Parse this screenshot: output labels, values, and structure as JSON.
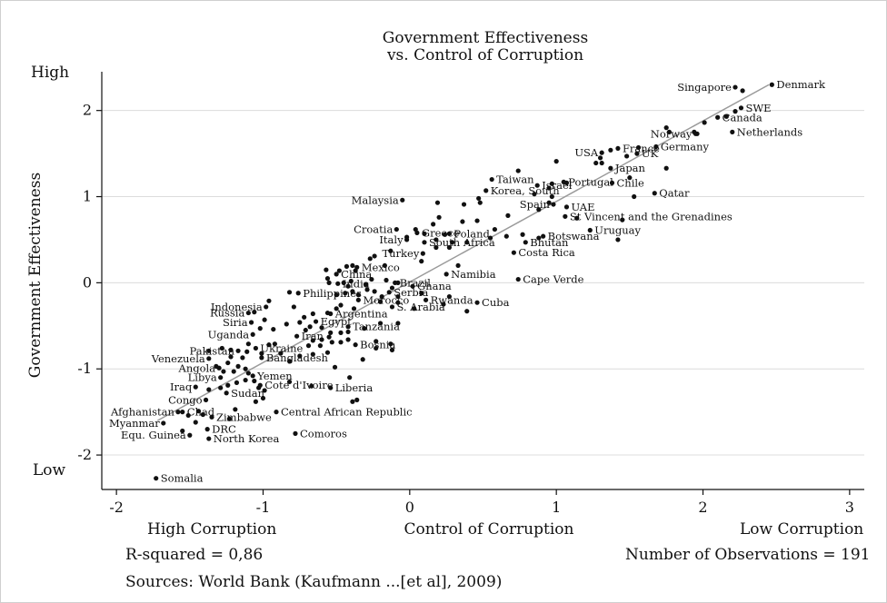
{
  "chart_data": {
    "type": "scatter",
    "title": "Government Effectiveness",
    "subtitle": "vs. Control of Corruption",
    "xlabel": "Control of Corruption",
    "ylabel": "Government Effectiveness",
    "xlim": [
      -2.1,
      3.1
    ],
    "ylim": [
      -2.4,
      2.45
    ],
    "xticks": [
      -2,
      -1,
      0,
      1,
      2,
      3
    ],
    "yticks": [
      2,
      1,
      0,
      -1,
      -2
    ],
    "y_high_label": "High",
    "y_low_label": "Low",
    "x_left_label": "High Corruption",
    "x_right_label": "Low Corruption",
    "grid": "horizontal",
    "fit_line": {
      "x": [
        -1.72,
        2.45
      ],
      "y": [
        -1.6,
        2.3
      ]
    },
    "labeled_points": [
      {
        "label": "Denmark",
        "x": 2.47,
        "y": 2.3
      },
      {
        "label": "Singapore",
        "x": 2.22,
        "y": 2.27
      },
      {
        "label": "SWE",
        "x": 2.26,
        "y": 2.03
      },
      {
        "label": "Canada",
        "x": 2.1,
        "y": 1.92
      },
      {
        "label": "Netherlands",
        "x": 2.2,
        "y": 1.75
      },
      {
        "label": "Norway",
        "x": 1.95,
        "y": 1.73
      },
      {
        "label": "France",
        "x": 1.42,
        "y": 1.56
      },
      {
        "label": "Germany",
        "x": 1.68,
        "y": 1.58
      },
      {
        "label": "USA",
        "x": 1.31,
        "y": 1.51
      },
      {
        "label": "UK",
        "x": 1.55,
        "y": 1.5
      },
      {
        "label": "Japan",
        "x": 1.37,
        "y": 1.33
      },
      {
        "label": "Taiwan",
        "x": 0.56,
        "y": 1.2
      },
      {
        "label": "Israel",
        "x": 0.87,
        "y": 1.13
      },
      {
        "label": "Portugal",
        "x": 1.05,
        "y": 1.17
      },
      {
        "label": "Chile",
        "x": 1.38,
        "y": 1.16
      },
      {
        "label": "Korea, South",
        "x": 0.52,
        "y": 1.07
      },
      {
        "label": "Qatar",
        "x": 1.67,
        "y": 1.04
      },
      {
        "label": "Malaysia",
        "x": -0.05,
        "y": 0.96
      },
      {
        "label": "Spain",
        "x": 0.98,
        "y": 0.91
      },
      {
        "label": "UAE",
        "x": 1.07,
        "y": 0.88
      },
      {
        "label": "St Vincent and the Grenadines",
        "x": 1.06,
        "y": 0.77
      },
      {
        "label": "Croatia",
        "x": -0.09,
        "y": 0.62
      },
      {
        "label": "Greece",
        "x": 0.05,
        "y": 0.58
      },
      {
        "label": "Poland",
        "x": 0.27,
        "y": 0.57
      },
      {
        "label": "Uruguay",
        "x": 1.23,
        "y": 0.61
      },
      {
        "label": "Italy",
        "x": -0.02,
        "y": 0.5
      },
      {
        "label": "South Africa",
        "x": 0.1,
        "y": 0.47
      },
      {
        "label": "Botswana",
        "x": 0.91,
        "y": 0.54
      },
      {
        "label": "Bhutan",
        "x": 0.79,
        "y": 0.47
      },
      {
        "label": "Turkey",
        "x": 0.09,
        "y": 0.34
      },
      {
        "label": "Costa Rica",
        "x": 0.71,
        "y": 0.35
      },
      {
        "label": "Mexico",
        "x": -0.36,
        "y": 0.18
      },
      {
        "label": "China",
        "x": -0.5,
        "y": 0.1
      },
      {
        "label": "Namibia",
        "x": 0.25,
        "y": 0.1
      },
      {
        "label": "India",
        "x": -0.49,
        "y": -0.01
      },
      {
        "label": "Brazil",
        "x": -0.1,
        "y": 0.0
      },
      {
        "label": "Cape Verde",
        "x": 0.74,
        "y": 0.04
      },
      {
        "label": "Ghana",
        "x": 0.02,
        "y": -0.04
      },
      {
        "label": "Philippines",
        "x": -0.76,
        "y": -0.12
      },
      {
        "label": "Serbia",
        "x": -0.14,
        "y": -0.11
      },
      {
        "label": "Rwanda",
        "x": 0.11,
        "y": -0.2
      },
      {
        "label": "Indonesia",
        "x": -0.98,
        "y": -0.28
      },
      {
        "label": "Morocco",
        "x": -0.35,
        "y": -0.2
      },
      {
        "label": "Cuba",
        "x": 0.46,
        "y": -0.23
      },
      {
        "label": "S. Arabia",
        "x": -0.12,
        "y": -0.28
      },
      {
        "label": "Russia",
        "x": -1.1,
        "y": -0.35
      },
      {
        "label": "Argentina",
        "x": -0.54,
        "y": -0.36
      },
      {
        "label": "Siria",
        "x": -1.08,
        "y": -0.46
      },
      {
        "label": "Egypt",
        "x": -0.64,
        "y": -0.45
      },
      {
        "label": "Tanzania",
        "x": -0.42,
        "y": -0.51
      },
      {
        "label": "Uganda",
        "x": -1.07,
        "y": -0.6
      },
      {
        "label": "Iran",
        "x": -0.77,
        "y": -0.62
      },
      {
        "label": "Bosnia",
        "x": -0.37,
        "y": -0.72
      },
      {
        "label": "Ukraine",
        "x": -1.05,
        "y": -0.76
      },
      {
        "label": "Pakistan",
        "x": -1.17,
        "y": -0.79
      },
      {
        "label": "Venezuela",
        "x": -1.37,
        "y": -0.88
      },
      {
        "label": "Bangladesh",
        "x": -1.01,
        "y": -0.87
      },
      {
        "label": "Angola",
        "x": -1.3,
        "y": -0.99
      },
      {
        "label": "Libya",
        "x": -1.29,
        "y": -1.1
      },
      {
        "label": "Yemen",
        "x": -1.07,
        "y": -1.08
      },
      {
        "label": "Cote d'Ivoire",
        "x": -1.02,
        "y": -1.19
      },
      {
        "label": "Liberia",
        "x": -0.54,
        "y": -1.22
      },
      {
        "label": "Iraq",
        "x": -1.46,
        "y": -1.21
      },
      {
        "label": "Sudan",
        "x": -1.25,
        "y": -1.28
      },
      {
        "label": "Congo",
        "x": -1.39,
        "y": -1.36
      },
      {
        "label": "Central African Republic",
        "x": -0.91,
        "y": -1.5
      },
      {
        "label": "Afghanistan",
        "x": -1.58,
        "y": -1.5
      },
      {
        "label": "Chad",
        "x": -1.55,
        "y": -1.5
      },
      {
        "label": "Zimbabwe",
        "x": -1.35,
        "y": -1.56
      },
      {
        "label": "Myanmar",
        "x": -1.68,
        "y": -1.63
      },
      {
        "label": "DRC",
        "x": -1.38,
        "y": -1.7
      },
      {
        "label": "Comoros",
        "x": -0.78,
        "y": -1.75
      },
      {
        "label": "Equ. Guinea",
        "x": -1.5,
        "y": -1.77
      },
      {
        "label": "North Korea",
        "x": -1.37,
        "y": -1.81
      },
      {
        "label": "Somalia",
        "x": -1.73,
        "y": -2.27
      }
    ],
    "unlabeled_points": [
      [
        2.27,
        2.23
      ],
      [
        2.22,
        1.99
      ],
      [
        2.16,
        1.93
      ],
      [
        2.01,
        1.86
      ],
      [
        1.96,
        1.73
      ],
      [
        1.94,
        1.75
      ],
      [
        1.77,
        1.75
      ],
      [
        1.75,
        1.8
      ],
      [
        1.56,
        1.57
      ],
      [
        1.37,
        1.54
      ],
      [
        1.3,
        1.45
      ],
      [
        1.48,
        1.47
      ],
      [
        1.31,
        1.39
      ],
      [
        1.27,
        1.39
      ],
      [
        1.75,
        1.33
      ],
      [
        1.5,
        1.22
      ],
      [
        1.53,
        1.0
      ],
      [
        1.07,
        1.16
      ],
      [
        1.0,
        1.41
      ],
      [
        0.74,
        1.3
      ],
      [
        0.97,
        1.15
      ],
      [
        0.95,
        1.1
      ],
      [
        0.85,
        1.03
      ],
      [
        0.97,
        1.0
      ],
      [
        0.95,
        0.93
      ],
      [
        0.88,
        0.85
      ],
      [
        1.14,
        0.75
      ],
      [
        1.45,
        0.73
      ],
      [
        1.42,
        0.5
      ],
      [
        0.48,
        0.93
      ],
      [
        0.47,
        0.98
      ],
      [
        0.37,
        0.91
      ],
      [
        0.19,
        0.93
      ],
      [
        0.67,
        0.78
      ],
      [
        0.46,
        0.72
      ],
      [
        0.2,
        0.76
      ],
      [
        0.36,
        0.71
      ],
      [
        0.16,
        0.68
      ],
      [
        0.04,
        0.62
      ],
      [
        0.1,
        0.57
      ],
      [
        0.24,
        0.56
      ],
      [
        0.58,
        0.62
      ],
      [
        0.18,
        0.5
      ],
      [
        0.29,
        0.47
      ],
      [
        0.18,
        0.41
      ],
      [
        -0.02,
        0.53
      ],
      [
        -0.13,
        0.37
      ],
      [
        -0.24,
        0.31
      ],
      [
        -0.27,
        0.28
      ],
      [
        0.27,
        0.41
      ],
      [
        0.39,
        0.47
      ],
      [
        0.55,
        0.52
      ],
      [
        0.77,
        0.56
      ],
      [
        0.88,
        0.52
      ],
      [
        0.66,
        0.54
      ],
      [
        0.33,
        0.2
      ],
      [
        0.08,
        0.25
      ],
      [
        -0.17,
        0.2
      ],
      [
        -0.37,
        0.14
      ],
      [
        -0.39,
        0.2
      ],
      [
        -0.43,
        0.19
      ],
      [
        -0.48,
        0.14
      ],
      [
        -0.57,
        0.15
      ],
      [
        -0.56,
        0.05
      ],
      [
        -0.55,
        0.0
      ],
      [
        -0.45,
        0.0
      ],
      [
        -0.4,
        0.02
      ],
      [
        -0.26,
        0.04
      ],
      [
        -0.16,
        0.03
      ],
      [
        -0.08,
        0.0
      ],
      [
        -0.12,
        -0.06
      ],
      [
        -0.29,
        -0.08
      ],
      [
        -0.39,
        -0.1
      ],
      [
        -0.35,
        -0.14
      ],
      [
        -0.2,
        -0.22
      ],
      [
        -0.19,
        -0.16
      ],
      [
        -0.24,
        -0.1
      ],
      [
        -0.08,
        -0.16
      ],
      [
        -0.44,
        -0.12
      ],
      [
        -0.5,
        -0.14
      ],
      [
        -0.3,
        -0.02
      ],
      [
        -0.42,
        -0.04
      ],
      [
        0.08,
        -0.12
      ],
      [
        0.23,
        -0.25
      ],
      [
        0.27,
        -0.16
      ],
      [
        -0.08,
        -0.23
      ],
      [
        0.03,
        -0.3
      ],
      [
        0.39,
        -0.33
      ],
      [
        -0.38,
        -0.3
      ],
      [
        -0.47,
        -0.26
      ],
      [
        -0.5,
        -0.3
      ],
      [
        -0.56,
        -0.35
      ],
      [
        -0.66,
        -0.36
      ],
      [
        -0.72,
        -0.4
      ],
      [
        -0.79,
        -0.28
      ],
      [
        -0.82,
        -0.11
      ],
      [
        -0.96,
        -0.21
      ],
      [
        -1.06,
        -0.34
      ],
      [
        -0.99,
        -0.43
      ],
      [
        -1.02,
        -0.53
      ],
      [
        -0.93,
        -0.54
      ],
      [
        -0.84,
        -0.48
      ],
      [
        -0.71,
        -0.55
      ],
      [
        -0.75,
        -0.46
      ],
      [
        -0.68,
        -0.51
      ],
      [
        -0.6,
        -0.52
      ],
      [
        -0.54,
        -0.58
      ],
      [
        -0.47,
        -0.58
      ],
      [
        -0.42,
        -0.57
      ],
      [
        -0.31,
        -0.53
      ],
      [
        -0.2,
        -0.47
      ],
      [
        -0.08,
        -0.47
      ],
      [
        -0.6,
        -0.66
      ],
      [
        -0.66,
        -0.67
      ],
      [
        -0.55,
        -0.63
      ],
      [
        -0.53,
        -0.69
      ],
      [
        -0.69,
        -0.73
      ],
      [
        -0.61,
        -0.73
      ],
      [
        -0.47,
        -0.69
      ],
      [
        -0.42,
        -0.66
      ],
      [
        -0.32,
        -0.89
      ],
      [
        -0.23,
        -0.76
      ],
      [
        -0.13,
        -0.71
      ],
      [
        -0.12,
        -0.78
      ],
      [
        -0.23,
        -0.68
      ],
      [
        -0.56,
        -0.81
      ],
      [
        -0.66,
        -0.83
      ],
      [
        -0.75,
        -0.85
      ],
      [
        -0.82,
        -0.91
      ],
      [
        -0.88,
        -0.82
      ],
      [
        -0.92,
        -0.71
      ],
      [
        -0.96,
        -0.72
      ],
      [
        -1.01,
        -0.82
      ],
      [
        -1.1,
        -0.71
      ],
      [
        -1.11,
        -0.8
      ],
      [
        -1.22,
        -0.78
      ],
      [
        -1.28,
        -0.76
      ],
      [
        -1.37,
        -0.79
      ],
      [
        -1.22,
        -0.86
      ],
      [
        -1.14,
        -0.87
      ],
      [
        -1.24,
        -0.93
      ],
      [
        -1.17,
        -0.97
      ],
      [
        -1.32,
        -0.97
      ],
      [
        -1.27,
        -1.03
      ],
      [
        -1.2,
        -1.03
      ],
      [
        -1.12,
        -1.0
      ],
      [
        -1.1,
        -1.05
      ],
      [
        -1.12,
        -1.13
      ],
      [
        -1.18,
        -1.16
      ],
      [
        -1.24,
        -1.19
      ],
      [
        -1.29,
        -1.22
      ],
      [
        -1.37,
        -1.24
      ],
      [
        -1.06,
        -1.14
      ],
      [
        -1.03,
        -1.22
      ],
      [
        -0.99,
        -1.25
      ],
      [
        -1.0,
        -1.34
      ],
      [
        -1.05,
        -1.38
      ],
      [
        -0.82,
        -1.15
      ],
      [
        -0.67,
        -1.2
      ],
      [
        -0.41,
        -1.1
      ],
      [
        -0.39,
        -1.38
      ],
      [
        -0.36,
        -1.36
      ],
      [
        -0.51,
        -0.98
      ],
      [
        -1.44,
        -1.49
      ],
      [
        -1.51,
        -1.54
      ],
      [
        -1.46,
        -1.62
      ],
      [
        -1.55,
        -1.72
      ],
      [
        -1.41,
        -1.53
      ],
      [
        -1.23,
        -1.58
      ],
      [
        -1.19,
        -1.47
      ]
    ],
    "r_squared_text": "R-squared = 0,86",
    "observations_text": "Number of Observations = 191",
    "source_text": "Sources: World Bank (Kaufmann ...[et al], 2009)"
  }
}
